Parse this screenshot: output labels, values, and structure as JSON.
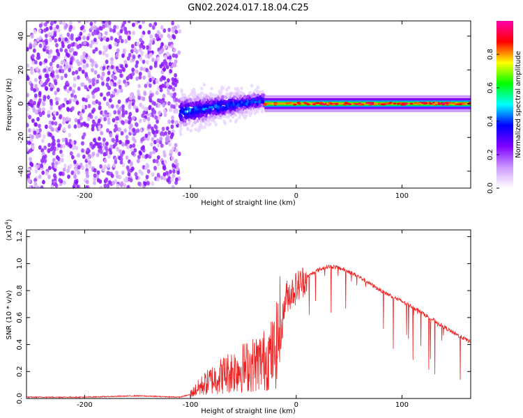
{
  "title": "GN02.2024.017.18.04.C25",
  "chart_data": [
    {
      "type": "heatmap",
      "xlabel": "Height of straight line (km)",
      "ylabel": "Frequency (Hz)",
      "xlim": [
        -255,
        165
      ],
      "ylim": [
        -50,
        49
      ],
      "xticks": [
        -200,
        -100,
        0,
        100
      ],
      "yticks": [
        -40,
        -20,
        0,
        20,
        40
      ],
      "colorbar": {
        "label": "Normalized spectral amplitude",
        "range": [
          0,
          1
        ],
        "ticks": [
          "0.0",
          "0.2",
          "0.4",
          "0.6",
          "0.8"
        ],
        "colors": [
          "#ffffff",
          "#cc99ff",
          "#7f00ff",
          "#0000ff",
          "#00ffff",
          "#00ff00",
          "#ffff00",
          "#ff0000",
          "#ff00aa"
        ]
      },
      "regions": [
        {
          "x": [
            -255,
            -110
          ],
          "frequency_spread_hz": [
            -50,
            49
          ],
          "amplitude": 0.1
        },
        {
          "x": [
            -110,
            -30
          ],
          "frequency_center_hz": [
            -5,
            2
          ],
          "spread_hz": 10,
          "amplitude": 0.3
        },
        {
          "x": [
            -30,
            165
          ],
          "frequency_center_hz": [
            0,
            0
          ],
          "spread_hz": 3,
          "amplitude": 0.8
        }
      ]
    },
    {
      "type": "line",
      "xlabel": "Height of straight line (km)",
      "ylabel": "SNR (10 * v/v)",
      "y_multiplier": "(x10",
      "y_multiplier_exp": "4",
      "y_multiplier_close": ")",
      "xlim": [
        -255,
        165
      ],
      "ylim": [
        0,
        1.25
      ],
      "xticks": [
        -200,
        -100,
        0,
        100
      ],
      "yticks": [
        "0.0",
        "0.2",
        "0.4",
        "0.6",
        "0.8",
        "1.0",
        "1.2"
      ],
      "color": "#ee2222",
      "series": [
        {
          "x": [
            -255,
            -200,
            -150,
            -110,
            -100,
            -90,
            -80,
            -70,
            -60,
            -50,
            -40,
            -30,
            -20,
            -15,
            -10,
            0,
            10,
            20,
            30,
            40,
            50,
            60,
            70,
            80,
            90,
            100,
            110,
            120,
            130,
            140,
            150,
            165
          ],
          "values": [
            0.01,
            0.01,
            0.02,
            0.01,
            0.03,
            0.08,
            0.12,
            0.15,
            0.18,
            0.2,
            0.22,
            0.25,
            0.3,
            0.45,
            0.75,
            0.82,
            0.9,
            0.95,
            0.98,
            0.97,
            0.94,
            0.9,
            0.85,
            0.8,
            0.76,
            0.72,
            0.68,
            0.63,
            0.58,
            0.53,
            0.48,
            0.42
          ]
        }
      ]
    }
  ]
}
